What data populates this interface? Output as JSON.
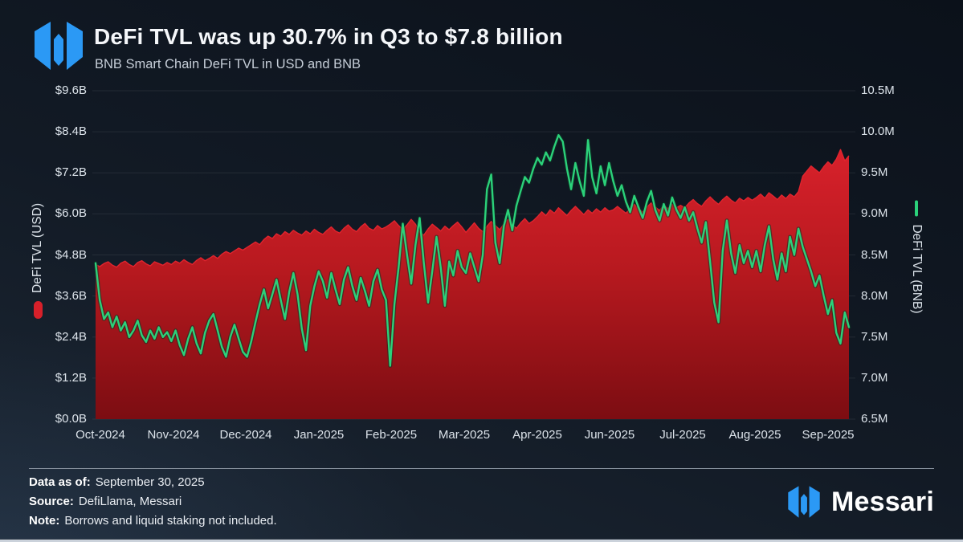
{
  "header": {
    "title": "DeFi TVL was up 30.7% in Q3 to $7.8 billion",
    "subtitle": "BNB Smart Chain DeFi TVL in USD and BNB"
  },
  "footer": {
    "data_as_of_label": "Data as of:",
    "data_as_of_value": "September 30, 2025",
    "source_label": "Source:",
    "source_value": "DefiLlama, Messari",
    "note_label": "Note:",
    "note_value": "Borrows and liquid staking not included.",
    "brand_name": "Messari"
  },
  "colors": {
    "background_top": "#0b111a",
    "background_bottom": "#1c2734",
    "logo_blue": "#2b99f5",
    "usd_area_top": "#d8212b",
    "usd_area_mid": "#b7191f",
    "usd_area_bottom": "#7c0d12",
    "bnb_line_green": "#2bd17a",
    "grid_line": "rgba(255,255,255,0.08)",
    "tick_text": "#dce3ea"
  },
  "chart_data": {
    "type": "area",
    "title": "DeFi TVL was up 30.7% in Q3 to $7.8 billion",
    "subtitle": "BNB Smart Chain DeFi TVL in USD and BNB",
    "grid": true,
    "legend_position": "axis-titles",
    "x_tick_labels": [
      "Oct-2024",
      "Nov-2024",
      "Dec-2024",
      "Jan-2025",
      "Feb-2025",
      "Mar-2025",
      "Apr-2025",
      "Jun-2025",
      "Jul-2025",
      "Aug-2025",
      "Sep-2025"
    ],
    "left_axis": {
      "label": "DeFi TVL (USD)",
      "min": 0.0,
      "max": 9.6,
      "ticks": [
        "$9.6B",
        "$8.4B",
        "$7.2B",
        "$6.0B",
        "$4.8B",
        "$3.6B",
        "$2.4B",
        "$1.2B",
        "$0.0B"
      ]
    },
    "right_axis": {
      "label": "DeFi TVL (BNB)",
      "min": 6.5,
      "max": 10.5,
      "ticks": [
        "10.5M",
        "10.0M",
        "9.5M",
        "9.0M",
        "8.5M",
        "8.0M",
        "7.5M",
        "7.0M",
        "6.5M"
      ]
    },
    "series": [
      {
        "name": "DeFi TVL (USD)",
        "type": "area",
        "axis": "left",
        "unit": "$B",
        "color": "#d7202a",
        "values": [
          4.52,
          4.46,
          4.55,
          4.6,
          4.5,
          4.44,
          4.56,
          4.62,
          4.52,
          4.46,
          4.58,
          4.63,
          4.54,
          4.48,
          4.6,
          4.55,
          4.5,
          4.58,
          4.52,
          4.62,
          4.56,
          4.66,
          4.58,
          4.52,
          4.64,
          4.72,
          4.63,
          4.7,
          4.78,
          4.7,
          4.82,
          4.9,
          4.84,
          4.92,
          5.0,
          4.94,
          5.02,
          5.1,
          5.18,
          5.1,
          5.25,
          5.35,
          5.28,
          5.42,
          5.35,
          5.48,
          5.4,
          5.52,
          5.44,
          5.38,
          5.5,
          5.42,
          5.55,
          5.46,
          5.4,
          5.52,
          5.62,
          5.5,
          5.44,
          5.58,
          5.68,
          5.55,
          5.48,
          5.62,
          5.72,
          5.58,
          5.52,
          5.66,
          5.56,
          5.62,
          5.7,
          5.8,
          5.66,
          5.54,
          5.68,
          5.84,
          5.7,
          5.46,
          5.38,
          5.56,
          5.7,
          5.6,
          5.5,
          5.64,
          5.54,
          5.66,
          5.76,
          5.62,
          5.46,
          5.6,
          5.74,
          5.58,
          5.48,
          5.64,
          5.78,
          5.66,
          5.54,
          5.7,
          5.84,
          5.68,
          5.58,
          5.74,
          5.86,
          5.72,
          5.8,
          5.92,
          6.06,
          5.95,
          6.12,
          6.02,
          6.18,
          6.06,
          5.95,
          6.1,
          6.22,
          6.1,
          5.98,
          6.12,
          6.02,
          6.15,
          6.05,
          6.18,
          6.08,
          6.12,
          6.22,
          6.12,
          6.02,
          6.15,
          6.28,
          6.15,
          6.05,
          6.2,
          6.32,
          6.2,
          6.1,
          6.25,
          6.15,
          6.28,
          6.18,
          6.25,
          6.18,
          6.32,
          6.42,
          6.3,
          6.22,
          6.38,
          6.5,
          6.38,
          6.28,
          6.42,
          6.52,
          6.4,
          6.32,
          6.46,
          6.38,
          6.48,
          6.4,
          6.48,
          6.58,
          6.46,
          6.62,
          6.52,
          6.42,
          6.55,
          6.45,
          6.58,
          6.5,
          6.65,
          7.1,
          7.25,
          7.4,
          7.3,
          7.2,
          7.38,
          7.52,
          7.42,
          7.6,
          7.88,
          7.55,
          7.7
        ]
      },
      {
        "name": "DeFi TVL (BNB)",
        "type": "line",
        "axis": "right",
        "unit": "M BNB",
        "color": "#2bd17a",
        "values": [
          8.4,
          7.95,
          7.72,
          7.8,
          7.62,
          7.75,
          7.58,
          7.68,
          7.5,
          7.58,
          7.7,
          7.52,
          7.44,
          7.58,
          7.48,
          7.62,
          7.5,
          7.56,
          7.45,
          7.58,
          7.4,
          7.28,
          7.48,
          7.62,
          7.42,
          7.3,
          7.55,
          7.7,
          7.78,
          7.58,
          7.38,
          7.26,
          7.5,
          7.65,
          7.48,
          7.32,
          7.26,
          7.45,
          7.68,
          7.9,
          8.08,
          7.85,
          8.02,
          8.2,
          7.95,
          7.72,
          8.05,
          8.28,
          8.02,
          7.6,
          7.34,
          7.88,
          8.12,
          8.3,
          8.18,
          7.98,
          8.28,
          8.08,
          7.9,
          8.2,
          8.35,
          8.12,
          7.95,
          8.22,
          8.06,
          7.88,
          8.18,
          8.32,
          8.08,
          7.95,
          7.15,
          7.9,
          8.35,
          8.88,
          8.5,
          8.15,
          8.62,
          8.95,
          8.4,
          7.92,
          8.3,
          8.72,
          8.35,
          7.88,
          8.42,
          8.25,
          8.55,
          8.35,
          8.28,
          8.52,
          8.35,
          8.18,
          8.5,
          9.3,
          9.48,
          8.65,
          8.4,
          8.85,
          9.05,
          8.8,
          9.1,
          9.28,
          9.45,
          9.38,
          9.55,
          9.68,
          9.6,
          9.75,
          9.65,
          9.82,
          9.96,
          9.88,
          9.55,
          9.3,
          9.62,
          9.4,
          9.22,
          9.9,
          9.45,
          9.25,
          9.58,
          9.35,
          9.62,
          9.4,
          9.22,
          9.35,
          9.15,
          9.02,
          9.22,
          9.08,
          8.95,
          9.15,
          9.28,
          9.05,
          8.92,
          9.12,
          8.98,
          9.2,
          9.05,
          8.95,
          9.08,
          8.92,
          9.02,
          8.82,
          8.65,
          8.9,
          8.42,
          7.92,
          7.68,
          8.55,
          8.92,
          8.52,
          8.28,
          8.62,
          8.4,
          8.55,
          8.35,
          8.55,
          8.3,
          8.62,
          8.85,
          8.45,
          8.2,
          8.52,
          8.3,
          8.72,
          8.5,
          8.82,
          8.6,
          8.45,
          8.3,
          8.12,
          8.25,
          8.0,
          7.78,
          7.95,
          7.55,
          7.42,
          7.8,
          7.62
        ]
      }
    ]
  }
}
